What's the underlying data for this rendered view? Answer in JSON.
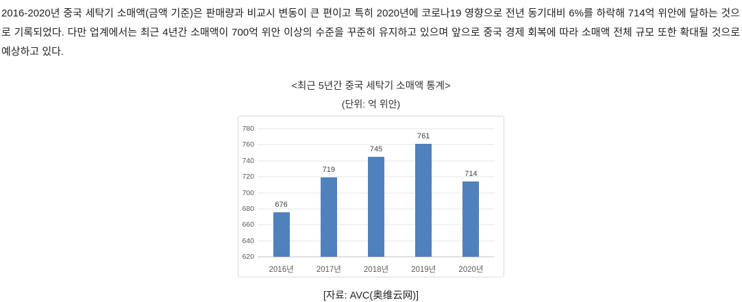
{
  "page": {
    "paragraph": "2016-2020년 중국 세탁기 소매액(금액 기준)은 판매량과 비교시 변동이 큰 편이고 특히 2020년에 코로나19 영향으로 전년 동기대비 6%를 하락해 714억 위안에 달하는 것으로 기록되었다. 다만 업계에서는 최근 4년간 소매액이 700억 위안 이상의 수준을 꾸준히 유지하고 있으며 앞으로 중국 경제 회복에 따라 소매액 전체 규모 또한 확대될 것으로 예상하고 있다.",
    "source": "[자료: AVC(奥维云网)]"
  },
  "chart_data": {
    "type": "bar",
    "title": "<최근 5년간 중국 세탁기 소매액 통계>",
    "subtitle": "(단위: 억 위안)",
    "categories": [
      "2016년",
      "2017년",
      "2018년",
      "2019년",
      "2020년"
    ],
    "values": [
      676,
      719,
      745,
      761,
      714
    ],
    "ylim": [
      620,
      780
    ],
    "ytick_step": 20,
    "yticks": [
      780,
      760,
      740,
      720,
      700,
      680,
      660,
      640,
      620
    ],
    "bar_color": "#4F81BD",
    "grid": true,
    "legend_position": "none",
    "xlabel": "",
    "ylabel": ""
  }
}
